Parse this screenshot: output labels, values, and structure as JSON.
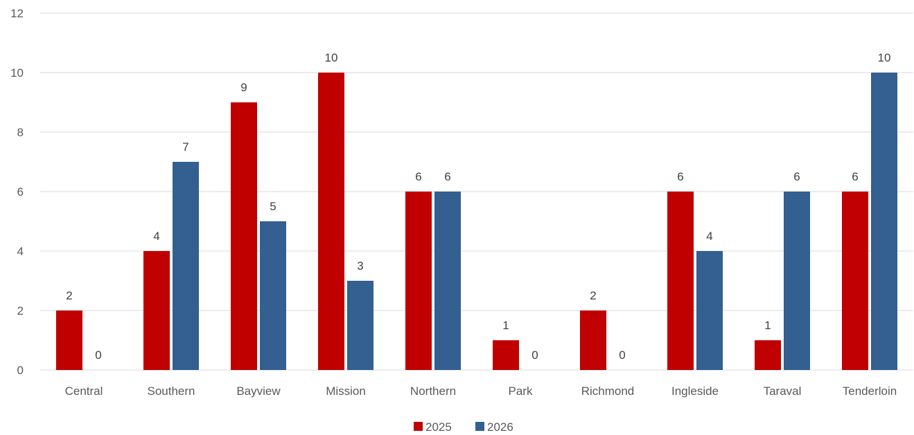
{
  "chart_data": {
    "type": "bar",
    "title": "",
    "xlabel": "",
    "ylabel": "",
    "categories": [
      "Central",
      "Southern",
      "Bayview",
      "Mission",
      "Northern",
      "Park",
      "Richmond",
      "Ingleside",
      "Taraval",
      "Tenderloin"
    ],
    "series": [
      {
        "name": "2025",
        "color": "#c00000",
        "values": [
          2,
          4,
          9,
          10,
          6,
          1,
          2,
          6,
          1,
          6
        ]
      },
      {
        "name": "2026",
        "color": "#335f91",
        "values": [
          0,
          7,
          5,
          3,
          6,
          0,
          0,
          4,
          6,
          10
        ]
      }
    ],
    "ylim": [
      0,
      12
    ],
    "yticks": [
      0,
      2,
      4,
      6,
      8,
      10,
      12
    ],
    "grid": true,
    "legend": "bottom-center",
    "data_labels": true
  }
}
